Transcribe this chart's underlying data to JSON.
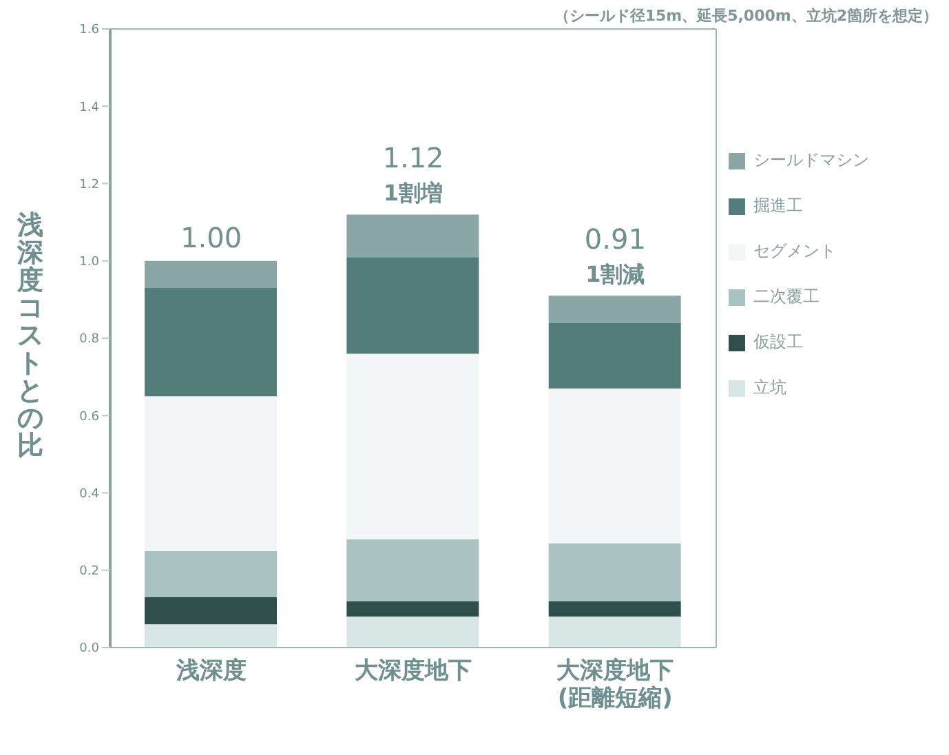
{
  "chart_data": {
    "type": "bar",
    "stacked": true,
    "ylabel": "浅深度コストとの比",
    "categories": [
      "浅深度",
      "大深度地下",
      "大深度地下\n(距離短縮)"
    ],
    "series": [
      {
        "name": "立坑",
        "color": "#d9e6e6",
        "values": [
          0.06,
          0.08,
          0.08
        ]
      },
      {
        "name": "仮設工",
        "color": "#2f4f4d",
        "values": [
          0.07,
          0.04,
          0.04
        ]
      },
      {
        "name": "二次覆工",
        "color": "#a9c2c2",
        "values": [
          0.12,
          0.16,
          0.15
        ]
      },
      {
        "name": "セグメント",
        "color": "#f3f6f6",
        "values": [
          0.4,
          0.48,
          0.4
        ]
      },
      {
        "name": "掘進工",
        "color": "#527d7a",
        "values": [
          0.28,
          0.25,
          0.17
        ]
      },
      {
        "name": "シールドマシン",
        "color": "#8aa6a6",
        "values": [
          0.07,
          0.11,
          0.07
        ]
      }
    ],
    "ylim": [
      0,
      1.6
    ],
    "yticks": [
      {
        "value": 0,
        "label": "0.0"
      },
      {
        "value": 0.2,
        "label": "0.2"
      },
      {
        "value": 0.4,
        "label": "0.4"
      },
      {
        "value": 0.6,
        "label": "0.6"
      },
      {
        "value": 0.8,
        "label": "0.8"
      },
      {
        "value": 1,
        "label": "1.0"
      },
      {
        "value": 1.2,
        "label": "1.2"
      },
      {
        "value": 1.4,
        "label": "1.4"
      },
      {
        "value": 1.6,
        "label": "1.6"
      }
    ],
    "grid": false,
    "legend": "right",
    "annotations": [
      "（シールド径15m、延長5,000m、立坑2箇所を想定）",
      {
        "text": "1.00",
        "x": "浅深度",
        "y": 1.0
      },
      {
        "text": "1.12\n1割増",
        "x": "大深度地下",
        "y": 1.12
      },
      {
        "text": "0.91\n1割減",
        "x": "大深度地下\n(距離短縮)",
        "y": 0.91
      }
    ]
  }
}
